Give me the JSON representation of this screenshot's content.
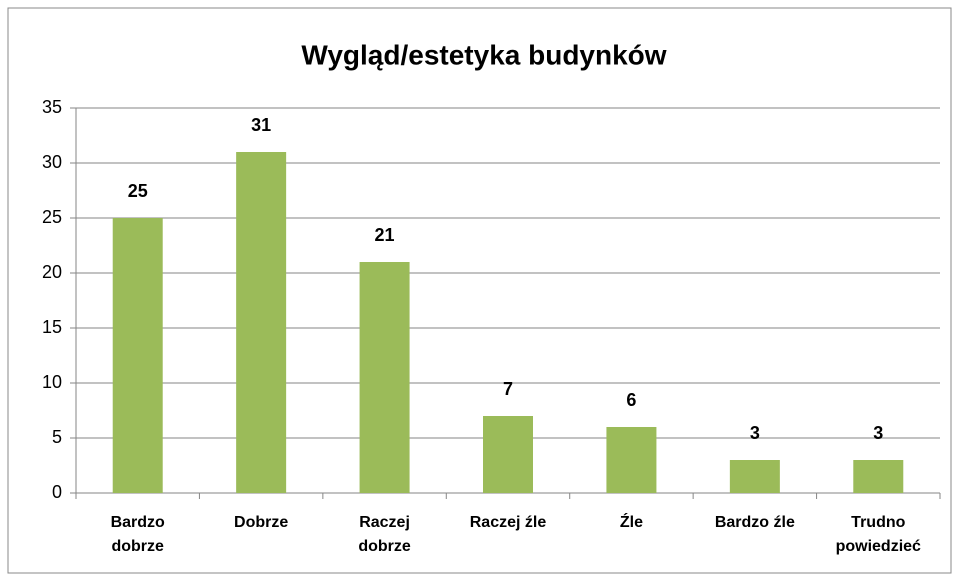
{
  "chart_data": {
    "type": "bar",
    "title": "Wygląd/estetyka budynków",
    "categories": [
      "Bardzo dobrze",
      "Dobrze",
      "Raczej dobrze",
      "Raczej źle",
      "Źle",
      "Bardzo źle",
      "Trudno powiedzieć"
    ],
    "values": [
      25,
      31,
      21,
      7,
      6,
      3,
      3
    ],
    "color": "#9bbb59",
    "ylim": [
      0,
      35
    ],
    "yticks": [
      0,
      5,
      10,
      15,
      20,
      25,
      30,
      35
    ],
    "grid": true,
    "value_labels_shown": true
  }
}
